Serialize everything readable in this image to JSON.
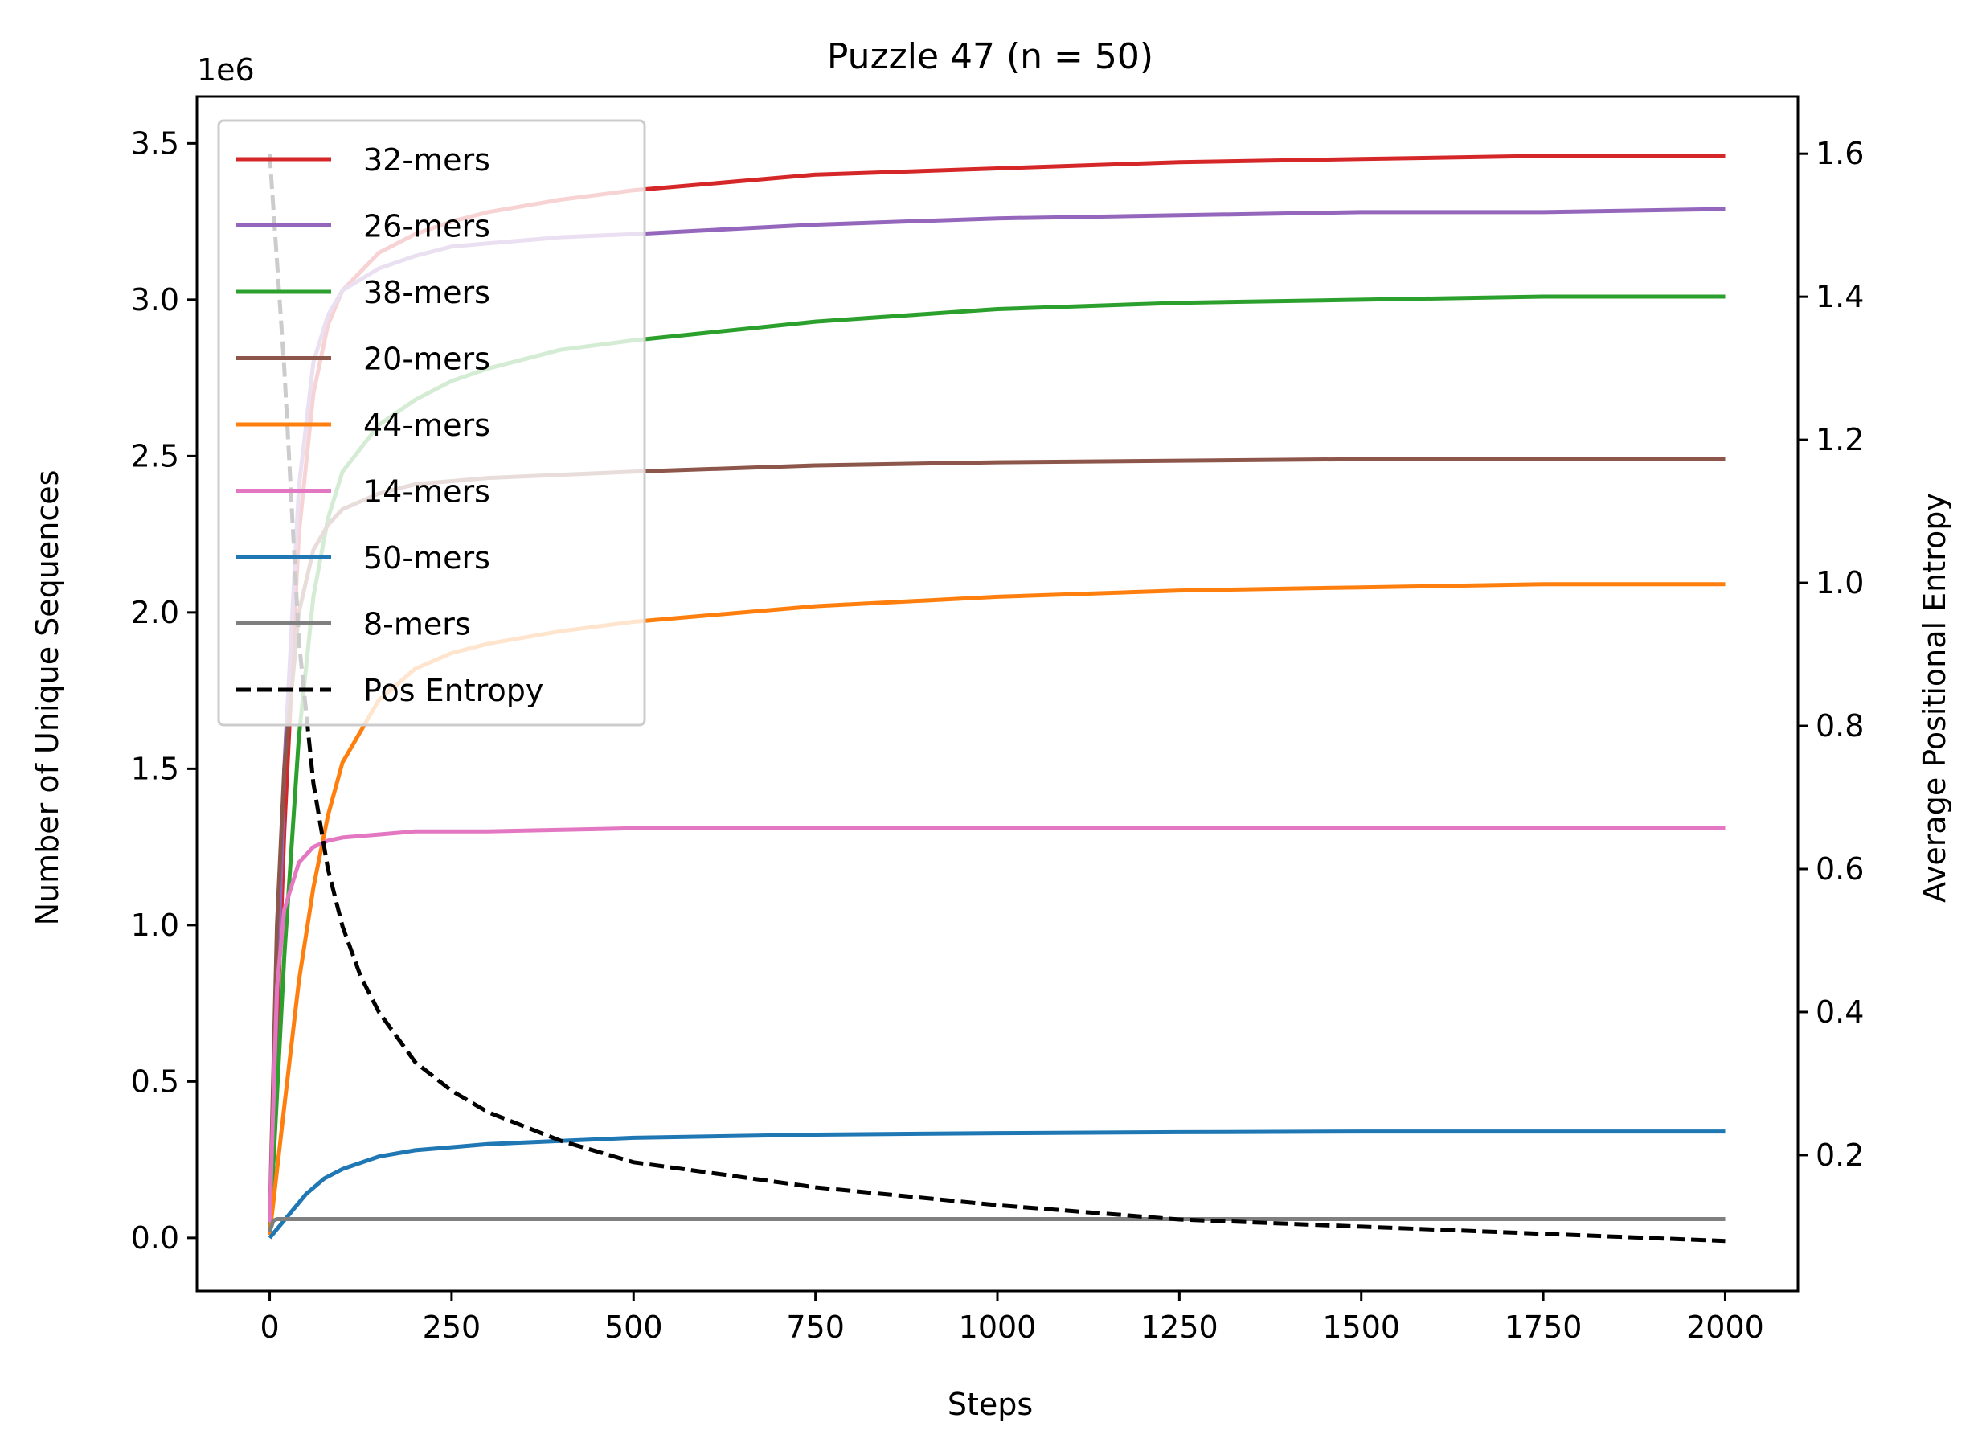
{
  "chart_data": {
    "type": "line",
    "title": "Puzzle 47 (n = 50)",
    "xlabel": "Steps",
    "ylabel": "Number of Unique Sequences",
    "y2label": "Average Positional Entropy",
    "y_offset_text": "1e6",
    "xlim": [
      -100,
      2100
    ],
    "ylim": [
      -0.17,
      3.65
    ],
    "y2lim": [
      0.01,
      1.68
    ],
    "xticks": [
      0,
      250,
      500,
      750,
      1000,
      1250,
      1500,
      1750,
      2000
    ],
    "xtick_labels": [
      "0",
      "250",
      "500",
      "750",
      "1000",
      "1250",
      "1500",
      "1750",
      "2000"
    ],
    "yticks": [
      0.0,
      0.5,
      1.0,
      1.5,
      2.0,
      2.5,
      3.0,
      3.5
    ],
    "ytick_labels": [
      "0.0",
      "0.5",
      "1.0",
      "1.5",
      "2.0",
      "2.5",
      "3.0",
      "3.5"
    ],
    "y2ticks": [
      0.2,
      0.4,
      0.6,
      0.8,
      1.0,
      1.2,
      1.4,
      1.6
    ],
    "y2tick_labels": [
      "0.2",
      "0.4",
      "0.6",
      "0.8",
      "1.0",
      "1.2",
      "1.4",
      "1.6"
    ],
    "grid": false,
    "legend_position": "upper-left",
    "series": [
      {
        "name": "32-mers",
        "color": "#d62728",
        "axis": "left",
        "dash": "solid",
        "x": [
          0,
          20,
          40,
          60,
          80,
          100,
          150,
          200,
          250,
          300,
          400,
          500,
          750,
          1000,
          1250,
          1500,
          1750,
          2000
        ],
        "y": [
          0.02,
          1.3,
          2.25,
          2.7,
          2.92,
          3.03,
          3.15,
          3.21,
          3.25,
          3.28,
          3.32,
          3.35,
          3.4,
          3.42,
          3.44,
          3.45,
          3.46,
          3.46
        ]
      },
      {
        "name": "26-mers",
        "color": "#9467bd",
        "axis": "left",
        "dash": "solid",
        "x": [
          0,
          20,
          40,
          60,
          80,
          100,
          150,
          200,
          250,
          300,
          400,
          500,
          750,
          1000,
          1250,
          1500,
          1750,
          2000
        ],
        "y": [
          0.03,
          1.5,
          2.4,
          2.8,
          2.95,
          3.03,
          3.1,
          3.14,
          3.17,
          3.18,
          3.2,
          3.21,
          3.24,
          3.26,
          3.27,
          3.28,
          3.28,
          3.29
        ]
      },
      {
        "name": "38-mers",
        "color": "#2ca02c",
        "axis": "left",
        "dash": "solid",
        "x": [
          0,
          20,
          40,
          60,
          80,
          100,
          150,
          200,
          250,
          300,
          400,
          500,
          750,
          1000,
          1250,
          1500,
          1750,
          2000
        ],
        "y": [
          0.01,
          0.9,
          1.6,
          2.05,
          2.3,
          2.45,
          2.6,
          2.68,
          2.74,
          2.78,
          2.84,
          2.87,
          2.93,
          2.97,
          2.99,
          3.0,
          3.01,
          3.01
        ]
      },
      {
        "name": "20-mers",
        "color": "#8c564b",
        "axis": "left",
        "dash": "solid",
        "x": [
          0,
          10,
          20,
          40,
          60,
          80,
          100,
          150,
          200,
          300,
          500,
          750,
          1000,
          1500,
          2000
        ],
        "y": [
          0.05,
          1.0,
          1.5,
          2.0,
          2.2,
          2.28,
          2.33,
          2.38,
          2.41,
          2.43,
          2.45,
          2.47,
          2.48,
          2.49,
          2.49
        ]
      },
      {
        "name": "44-mers",
        "color": "#ff7f0e",
        "axis": "left",
        "dash": "solid",
        "x": [
          0,
          20,
          40,
          60,
          80,
          100,
          150,
          200,
          250,
          300,
          400,
          500,
          750,
          1000,
          1250,
          1500,
          1750,
          2000
        ],
        "y": [
          0.01,
          0.42,
          0.82,
          1.12,
          1.35,
          1.52,
          1.72,
          1.82,
          1.87,
          1.9,
          1.94,
          1.97,
          2.02,
          2.05,
          2.07,
          2.08,
          2.09,
          2.09
        ]
      },
      {
        "name": "14-mers",
        "color": "#e377c2",
        "axis": "left",
        "dash": "solid",
        "x": [
          0,
          10,
          20,
          40,
          60,
          80,
          100,
          150,
          200,
          300,
          500,
          1000,
          1500,
          2000
        ],
        "y": [
          0.05,
          0.8,
          1.05,
          1.2,
          1.25,
          1.27,
          1.28,
          1.29,
          1.3,
          1.3,
          1.31,
          1.31,
          1.31,
          1.31
        ]
      },
      {
        "name": "50-mers",
        "color": "#1f77b4",
        "axis": "left",
        "dash": "solid",
        "x": [
          0,
          25,
          50,
          75,
          100,
          150,
          200,
          250,
          300,
          400,
          500,
          750,
          1000,
          1250,
          1500,
          2000
        ],
        "y": [
          0.0,
          0.07,
          0.14,
          0.19,
          0.22,
          0.26,
          0.28,
          0.29,
          0.3,
          0.31,
          0.32,
          0.33,
          0.335,
          0.338,
          0.34,
          0.34
        ]
      },
      {
        "name": "8-mers",
        "color": "#7f7f7f",
        "axis": "left",
        "dash": "solid",
        "x": [
          0,
          5,
          10,
          2000
        ],
        "y": [
          0.02,
          0.055,
          0.06,
          0.06
        ]
      },
      {
        "name": "Pos Entropy",
        "color": "#000000",
        "axis": "right",
        "dash": "dashed",
        "x": [
          0,
          20,
          40,
          60,
          80,
          100,
          125,
          150,
          200,
          250,
          300,
          400,
          500,
          750,
          1000,
          1250,
          1500,
          1750,
          2000
        ],
        "y": [
          1.6,
          1.3,
          0.92,
          0.72,
          0.6,
          0.52,
          0.45,
          0.4,
          0.33,
          0.29,
          0.26,
          0.22,
          0.19,
          0.155,
          0.13,
          0.11,
          0.1,
          0.09,
          0.08
        ]
      }
    ]
  }
}
